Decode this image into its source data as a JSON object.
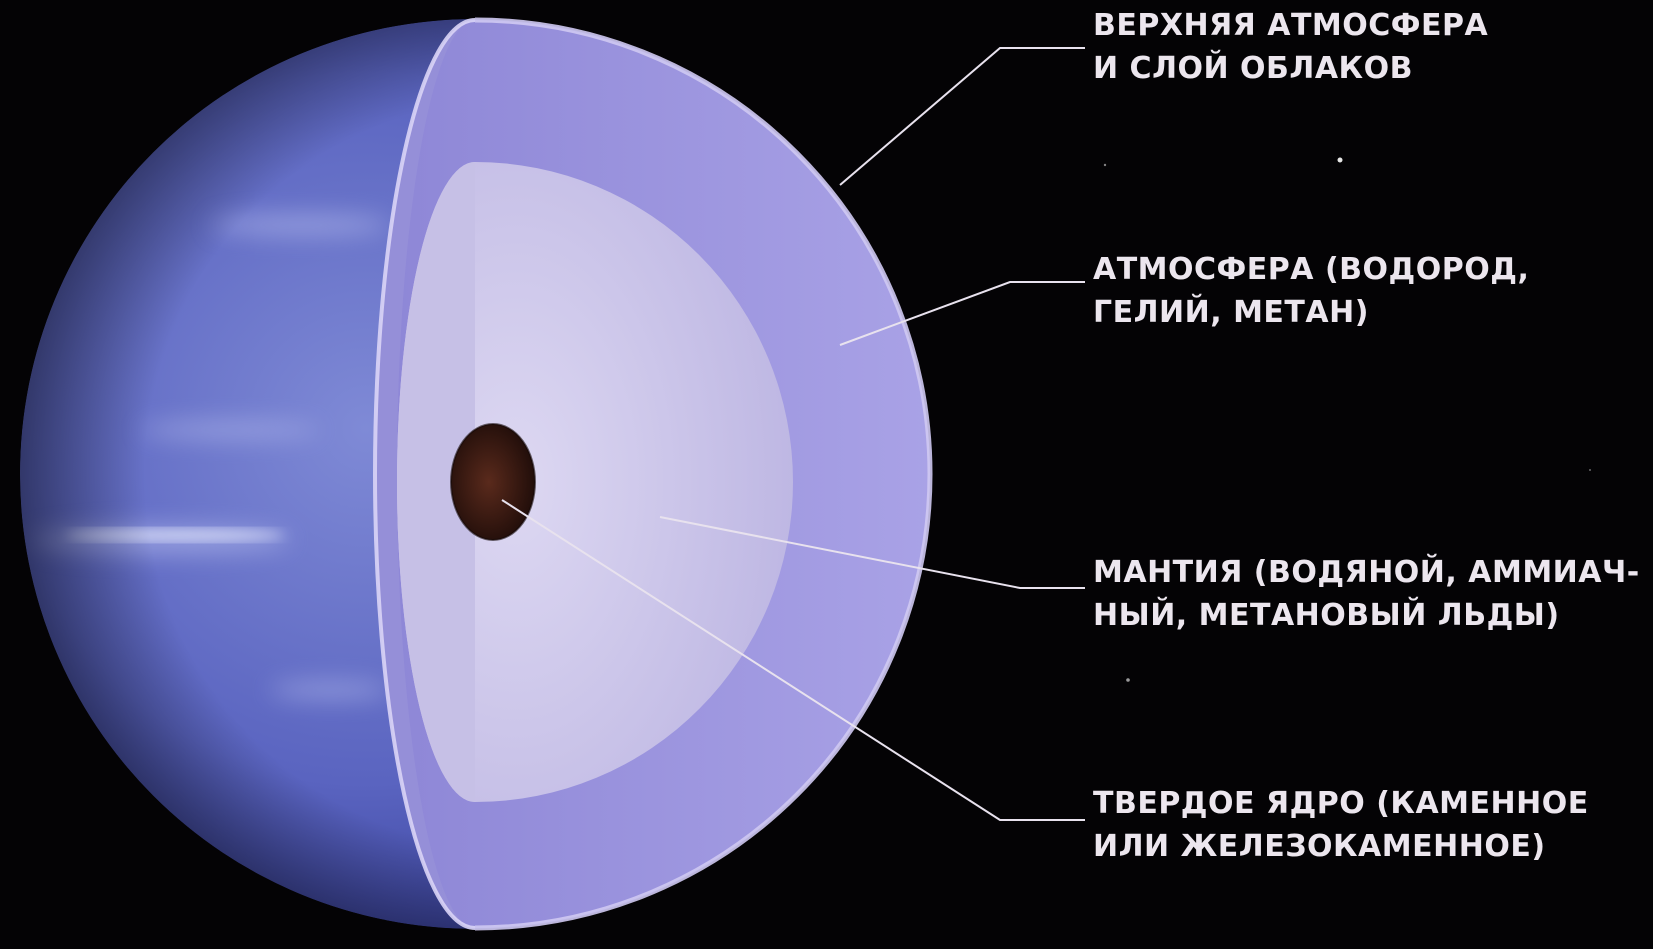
{
  "diagram": {
    "labels": {
      "upper_atmosphere": {
        "line1": "ВЕРХНЯЯ АТМОСФЕРА",
        "line2": "И СЛОЙ ОБЛАКОВ"
      },
      "atmosphere": {
        "line1": "АТМОСФЕРА (ВОДОРОД,",
        "line2": "ГЕЛИЙ, МЕТАН)"
      },
      "mantle": {
        "line1": "МАНТИЯ (ВОДЯНОЙ, АММИАЧ-",
        "line2": "НЫЙ, МЕТАНОВЫЙ ЛЬДЫ)"
      },
      "core": {
        "line1": "ТВЕРДОЕ ЯДРО (КАМЕННОЕ",
        "line2": "ИЛИ ЖЕЛЕЗОКАМЕННОЕ)"
      }
    },
    "colors": {
      "background": "#040305",
      "planet_surface": "#5e6ac4",
      "atmosphere_layer": "#a49ee2",
      "atmosphere_rim": "#d9d4f6",
      "mantle": "#c9c3e8",
      "core": "#3a1a12",
      "label_text": "#ece6ee",
      "leader_line": "#e8e2ee"
    }
  }
}
